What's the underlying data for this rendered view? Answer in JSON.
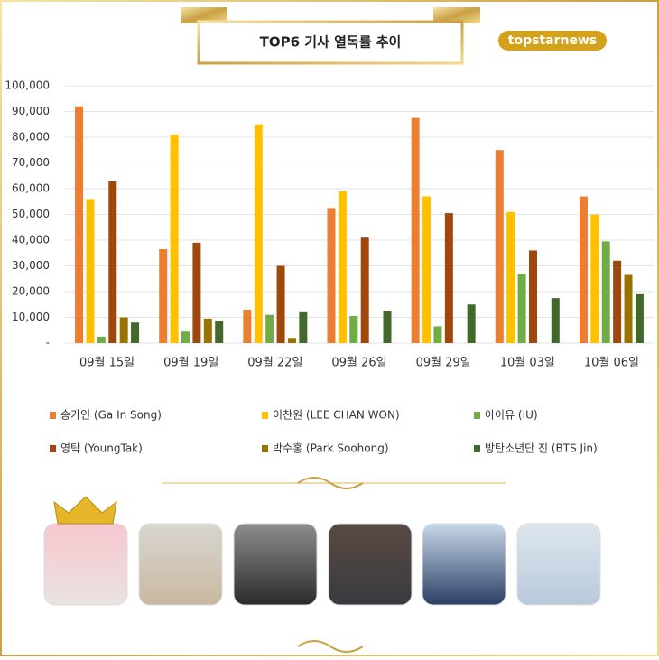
{
  "chart_data": {
    "type": "bar",
    "title": "TOP6 기사 열독률 추이",
    "brand": "topstarnews",
    "categories": [
      "09월 15일",
      "09월 19일",
      "09월 22일",
      "09월 26일",
      "09월 29일",
      "10월 03일",
      "10월 06일"
    ],
    "series": [
      {
        "name": "송가인 (Ga In Song)",
        "color": "#ED7D31",
        "values": [
          92000,
          36500,
          13000,
          52500,
          87500,
          75000,
          57000
        ]
      },
      {
        "name": "이찬원 (LEE CHAN WON)",
        "color": "#FFC000",
        "values": [
          56000,
          81000,
          85000,
          59000,
          57000,
          51000,
          50000
        ]
      },
      {
        "name": "아이유 (IU)",
        "color": "#70AD47",
        "values": [
          2500,
          4500,
          11000,
          10500,
          6500,
          27000,
          39500
        ]
      },
      {
        "name": "영탁 (YoungTak)",
        "color": "#9E480E",
        "values": [
          63000,
          39000,
          30000,
          41000,
          50500,
          36000,
          32000
        ]
      },
      {
        "name": "박수홍 (Park Soohong)",
        "color": "#997300",
        "values": [
          10000,
          9500,
          2000,
          null,
          null,
          null,
          26500
        ]
      },
      {
        "name": "방탄소년단 진 (BTS Jin)",
        "color": "#43682B",
        "values": [
          8000,
          8500,
          12000,
          12500,
          15000,
          17500,
          19000
        ]
      }
    ],
    "ylim": [
      0,
      100000
    ],
    "yticks": [
      {
        "value": 0,
        "label": "-"
      },
      {
        "value": 10000,
        "label": "10,000"
      },
      {
        "value": 20000,
        "label": "20,000"
      },
      {
        "value": 30000,
        "label": "30,000"
      },
      {
        "value": 40000,
        "label": "40,000"
      },
      {
        "value": 50000,
        "label": "50,000"
      },
      {
        "value": 60000,
        "label": "60,000"
      },
      {
        "value": 70000,
        "label": "70,000"
      },
      {
        "value": 80000,
        "label": "80,000"
      },
      {
        "value": 90000,
        "label": "90,000"
      },
      {
        "value": 100000,
        "label": "100,000"
      }
    ],
    "grid": true
  }
}
